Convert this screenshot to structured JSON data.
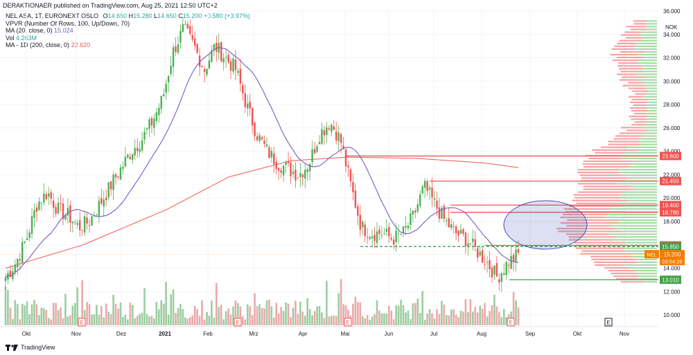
{
  "header": {
    "publisher": "DERAKTIONAER published on TradingView.com, Aug 25, 2021 12:50 UTC+2"
  },
  "legend": {
    "symbol": "NEL ASA, 1T, EURONEXT OSLO",
    "ohlc": {
      "o_label": "O",
      "o": "14.650",
      "h_label": "H",
      "h": "15.280",
      "l_label": "L",
      "l": "14.650",
      "c_label": "C",
      "c": "15.200",
      "change": "+0.580 (+3.97%)"
    },
    "vpvr": "VPVR (Number Of Rows, 100, Up/Down, 70)",
    "ma20_label": "MA (20, close, 0)",
    "ma20_value": "15.024",
    "vol_label": "Vol",
    "vol_value": "4.263M",
    "ma200_label": "MA - 1D (200, close, 0)",
    "ma200_value": "22.620"
  },
  "colors": {
    "up": "#26a69a",
    "up_body": "#4caf50",
    "down": "#ef5350",
    "ma20": "#7e57c2",
    "ma200": "#ef5350",
    "vol_up": "#8bc48f",
    "vol_down": "#e89a9a",
    "vp_up": "#8fd18f",
    "vp_down": "#f28b8b",
    "grid": "#f0f3fa",
    "axis_text": "#131722",
    "ellipse": "#3f51b5"
  },
  "chart_data": {
    "type": "candlestick",
    "currency": "NOK",
    "ylim": [
      9,
      36
    ],
    "y_ticks": [
      "10.000",
      "12.000",
      "14.000",
      "16.000",
      "18.000",
      "20.000",
      "22.000",
      "24.000",
      "26.000",
      "28.000",
      "30.000",
      "32.000",
      "34.000",
      "36.000"
    ],
    "x_ticks": [
      "Okt",
      "Nov",
      "Dez",
      "2021",
      "Feb",
      "Mrz",
      "Apr",
      "Mai",
      "Jun",
      "Jul",
      "Aug",
      "Sep",
      "Okt",
      "Nov"
    ],
    "close_path": [
      13.2,
      14.5,
      16.5,
      19.5,
      20.5,
      19.0,
      18.5,
      17.5,
      18.0,
      19.5,
      21.0,
      22.5,
      24.0,
      25.0,
      26.5,
      28.5,
      32.5,
      34.5,
      33.0,
      31.0,
      33.0,
      32.0,
      31.0,
      28.0,
      25.5,
      24.0,
      23.0,
      22.5,
      22.0,
      23.0,
      25.5,
      26.5,
      25.0,
      21.0,
      17.5,
      17.0,
      17.0,
      16.5,
      17.0,
      18.5,
      21.0,
      19.5,
      18.0,
      17.0,
      16.5,
      15.5,
      14.5,
      13.2,
      14.5,
      15.2
    ],
    "price_levels": [
      {
        "value": "23.600",
        "y": 23.6,
        "color": "#ef5350",
        "style": "solid"
      },
      {
        "value": "21.450",
        "y": 21.45,
        "color": "#ef5350",
        "style": "solid"
      },
      {
        "value": "19.400",
        "y": 19.4,
        "color": "#ef5350",
        "style": "solid"
      },
      {
        "value": "18.780",
        "y": 18.78,
        "color": "#ef5350",
        "style": "solid"
      },
      {
        "value": "15.950",
        "y": 15.95,
        "color": "#ef5350",
        "style": "solid"
      },
      {
        "value": "15.850",
        "y": 15.85,
        "color": "#43a047",
        "style": "dashed"
      },
      {
        "value": "13.010",
        "y": 13.01,
        "color": "#43a047",
        "style": "solid"
      }
    ],
    "last_price": {
      "symbol": "NEL",
      "value": "15.200",
      "countdown": "03:54:28"
    },
    "markers": [
      "E",
      "E",
      "E",
      "E",
      "E",
      "E",
      "E",
      "E"
    ]
  },
  "footer": {
    "brand": "TradingView"
  }
}
